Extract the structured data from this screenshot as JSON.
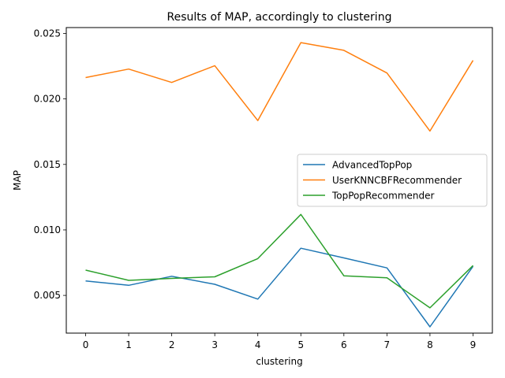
{
  "chart_data": {
    "type": "line",
    "title": "Results of MAP, accordingly to clustering",
    "xlabel": "clustering",
    "ylabel": "MAP",
    "x": [
      0,
      1,
      2,
      3,
      4,
      5,
      6,
      7,
      8,
      9
    ],
    "xticks": [
      "0",
      "1",
      "2",
      "3",
      "4",
      "5",
      "6",
      "7",
      "8",
      "9"
    ],
    "yticks": [
      0.005,
      0.01,
      0.015,
      0.02,
      0.025
    ],
    "yticklabels": [
      "0.005",
      "0.010",
      "0.015",
      "0.020",
      "0.025"
    ],
    "xlim": [
      -0.45,
      9.45
    ],
    "ylim": [
      0.00212,
      0.02545
    ],
    "grid": false,
    "legend_position": "center-right",
    "series": [
      {
        "name": "AdvancedTopPop",
        "color": "#1f77b4",
        "values": [
          0.0061,
          0.00577,
          0.00646,
          0.00585,
          0.00472,
          0.0086,
          0.00786,
          0.0071,
          0.0026,
          0.00722
        ]
      },
      {
        "name": "UserKNNCBFRecommender",
        "color": "#ff7f0e",
        "values": [
          0.02163,
          0.02228,
          0.02126,
          0.02254,
          0.01835,
          0.0243,
          0.02371,
          0.02198,
          0.01755,
          0.02294
        ]
      },
      {
        "name": "TopPopRecommender",
        "color": "#2ca02c",
        "values": [
          0.00693,
          0.00615,
          0.0063,
          0.00642,
          0.00781,
          0.01118,
          0.0065,
          0.00634,
          0.00405,
          0.00728
        ]
      }
    ]
  }
}
